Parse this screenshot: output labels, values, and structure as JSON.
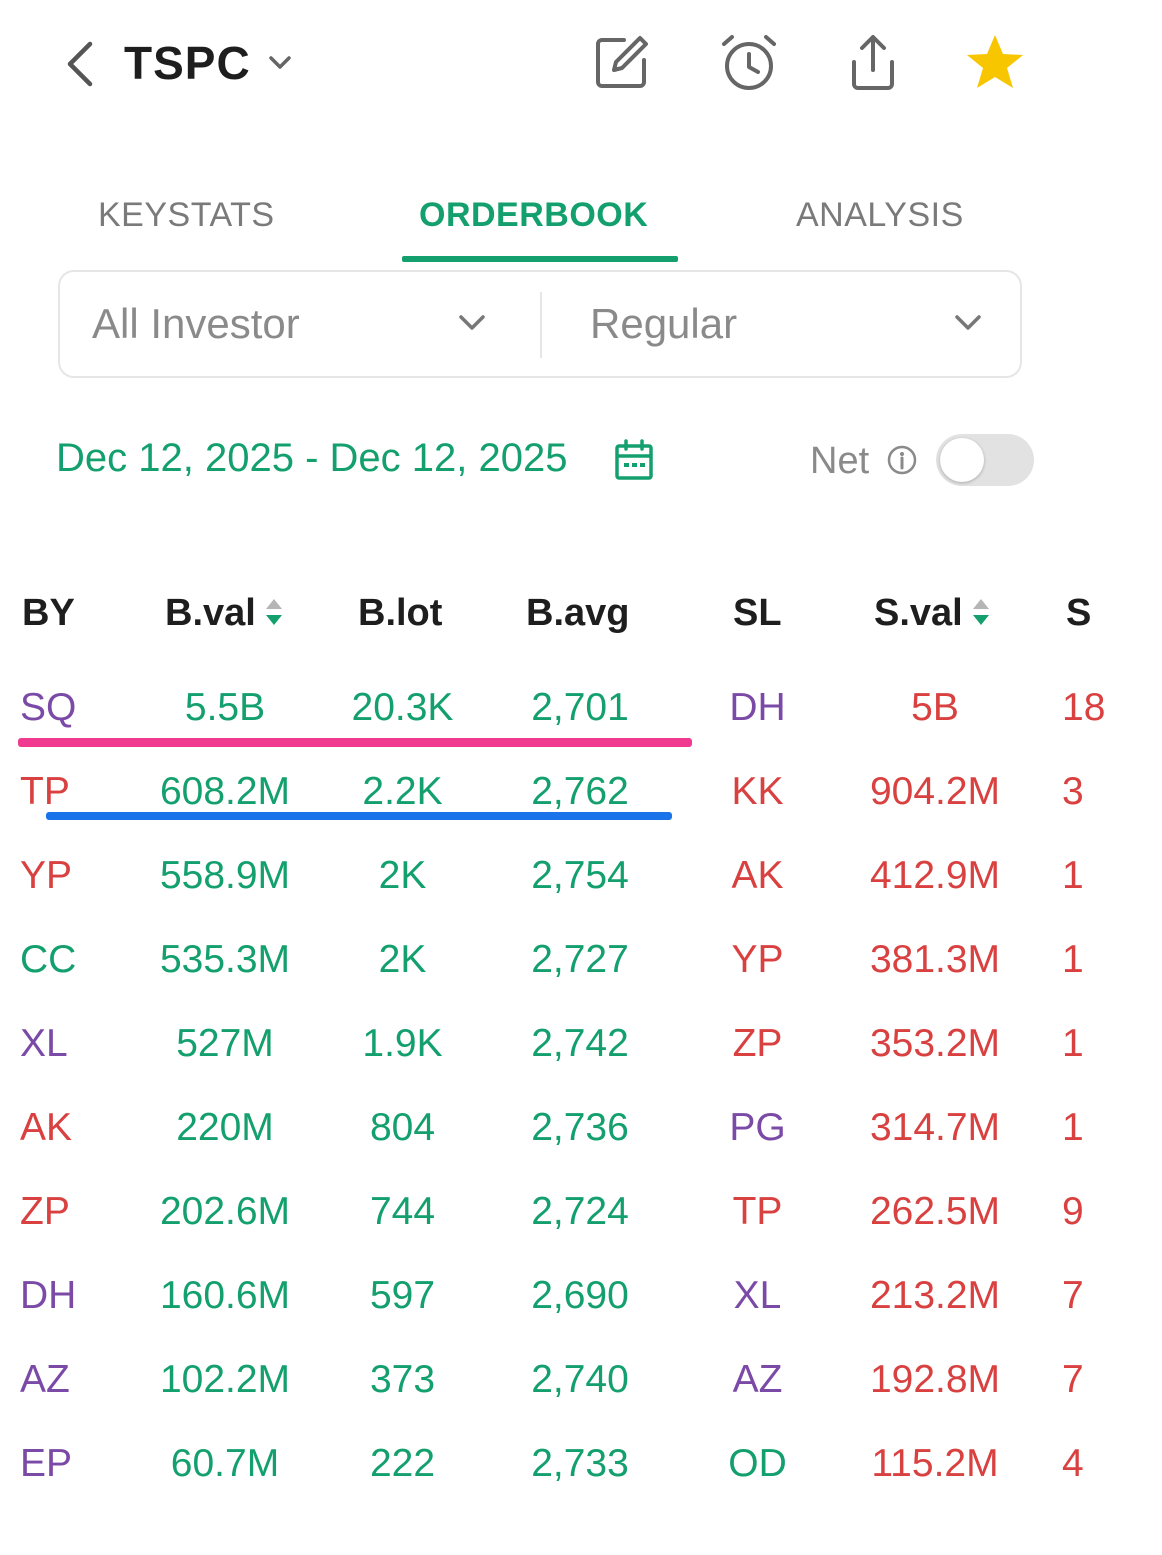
{
  "header": {
    "ticker": "TSPC",
    "icons": [
      "back-chevron-icon",
      "edit-note-icon",
      "alarm-clock-icon",
      "share-icon",
      "star-icon"
    ],
    "star_color": "#f7c600"
  },
  "tabs": [
    {
      "label": "KEYSTATS",
      "active": false
    },
    {
      "label": "ORDERBOOK",
      "active": true
    },
    {
      "label": "ANALYSIS",
      "active": false
    }
  ],
  "filters": {
    "investor": "All Investor",
    "market": "Regular"
  },
  "date_range": "Dec 12, 2025 - Dec 12, 2025",
  "net": {
    "label": "Net",
    "enabled": false
  },
  "table": {
    "headers": {
      "by": "BY",
      "bval": "B.val",
      "blot": "B.lot",
      "bavg": "B.avg",
      "sl": "SL",
      "sval": "S.val",
      "slot": "S"
    },
    "rows": [
      {
        "by": "SQ",
        "bval": "5.5B",
        "blot": "20.3K",
        "bavg": "2,701",
        "sl": "DH",
        "sval": "5B",
        "slot": "18"
      },
      {
        "by": "TP",
        "bval": "608.2M",
        "blot": "2.2K",
        "bavg": "2,762",
        "sl": "KK",
        "sval": "904.2M",
        "slot": "3"
      },
      {
        "by": "YP",
        "bval": "558.9M",
        "blot": "2K",
        "bavg": "2,754",
        "sl": "AK",
        "sval": "412.9M",
        "slot": "1"
      },
      {
        "by": "CC",
        "bval": "535.3M",
        "blot": "2K",
        "bavg": "2,727",
        "sl": "YP",
        "sval": "381.3M",
        "slot": "1"
      },
      {
        "by": "XL",
        "bval": "527M",
        "blot": "1.9K",
        "bavg": "2,742",
        "sl": "ZP",
        "sval": "353.2M",
        "slot": "1"
      },
      {
        "by": "AK",
        "bval": "220M",
        "blot": "804",
        "bavg": "2,736",
        "sl": "PG",
        "sval": "314.7M",
        "slot": "1"
      },
      {
        "by": "ZP",
        "bval": "202.6M",
        "blot": "744",
        "bavg": "2,724",
        "sl": "TP",
        "sval": "262.5M",
        "slot": "9"
      },
      {
        "by": "DH",
        "bval": "160.6M",
        "blot": "597",
        "bavg": "2,690",
        "sl": "XL",
        "sval": "213.2M",
        "slot": "7"
      },
      {
        "by": "AZ",
        "bval": "102.2M",
        "blot": "373",
        "bavg": "2,740",
        "sl": "AZ",
        "sval": "192.8M",
        "slot": "7"
      },
      {
        "by": "EP",
        "bval": "60.7M",
        "blot": "222",
        "bavg": "2,733",
        "sl": "OD",
        "sval": "115.2M",
        "slot": "4"
      }
    ],
    "by_colors": [
      "purple",
      "red",
      "red",
      "green",
      "purple",
      "red",
      "red",
      "purple",
      "purple",
      "purple"
    ],
    "sl_colors": [
      "purple",
      "red",
      "red",
      "red",
      "red",
      "purple",
      "red",
      "purple",
      "purple",
      "green"
    ]
  }
}
